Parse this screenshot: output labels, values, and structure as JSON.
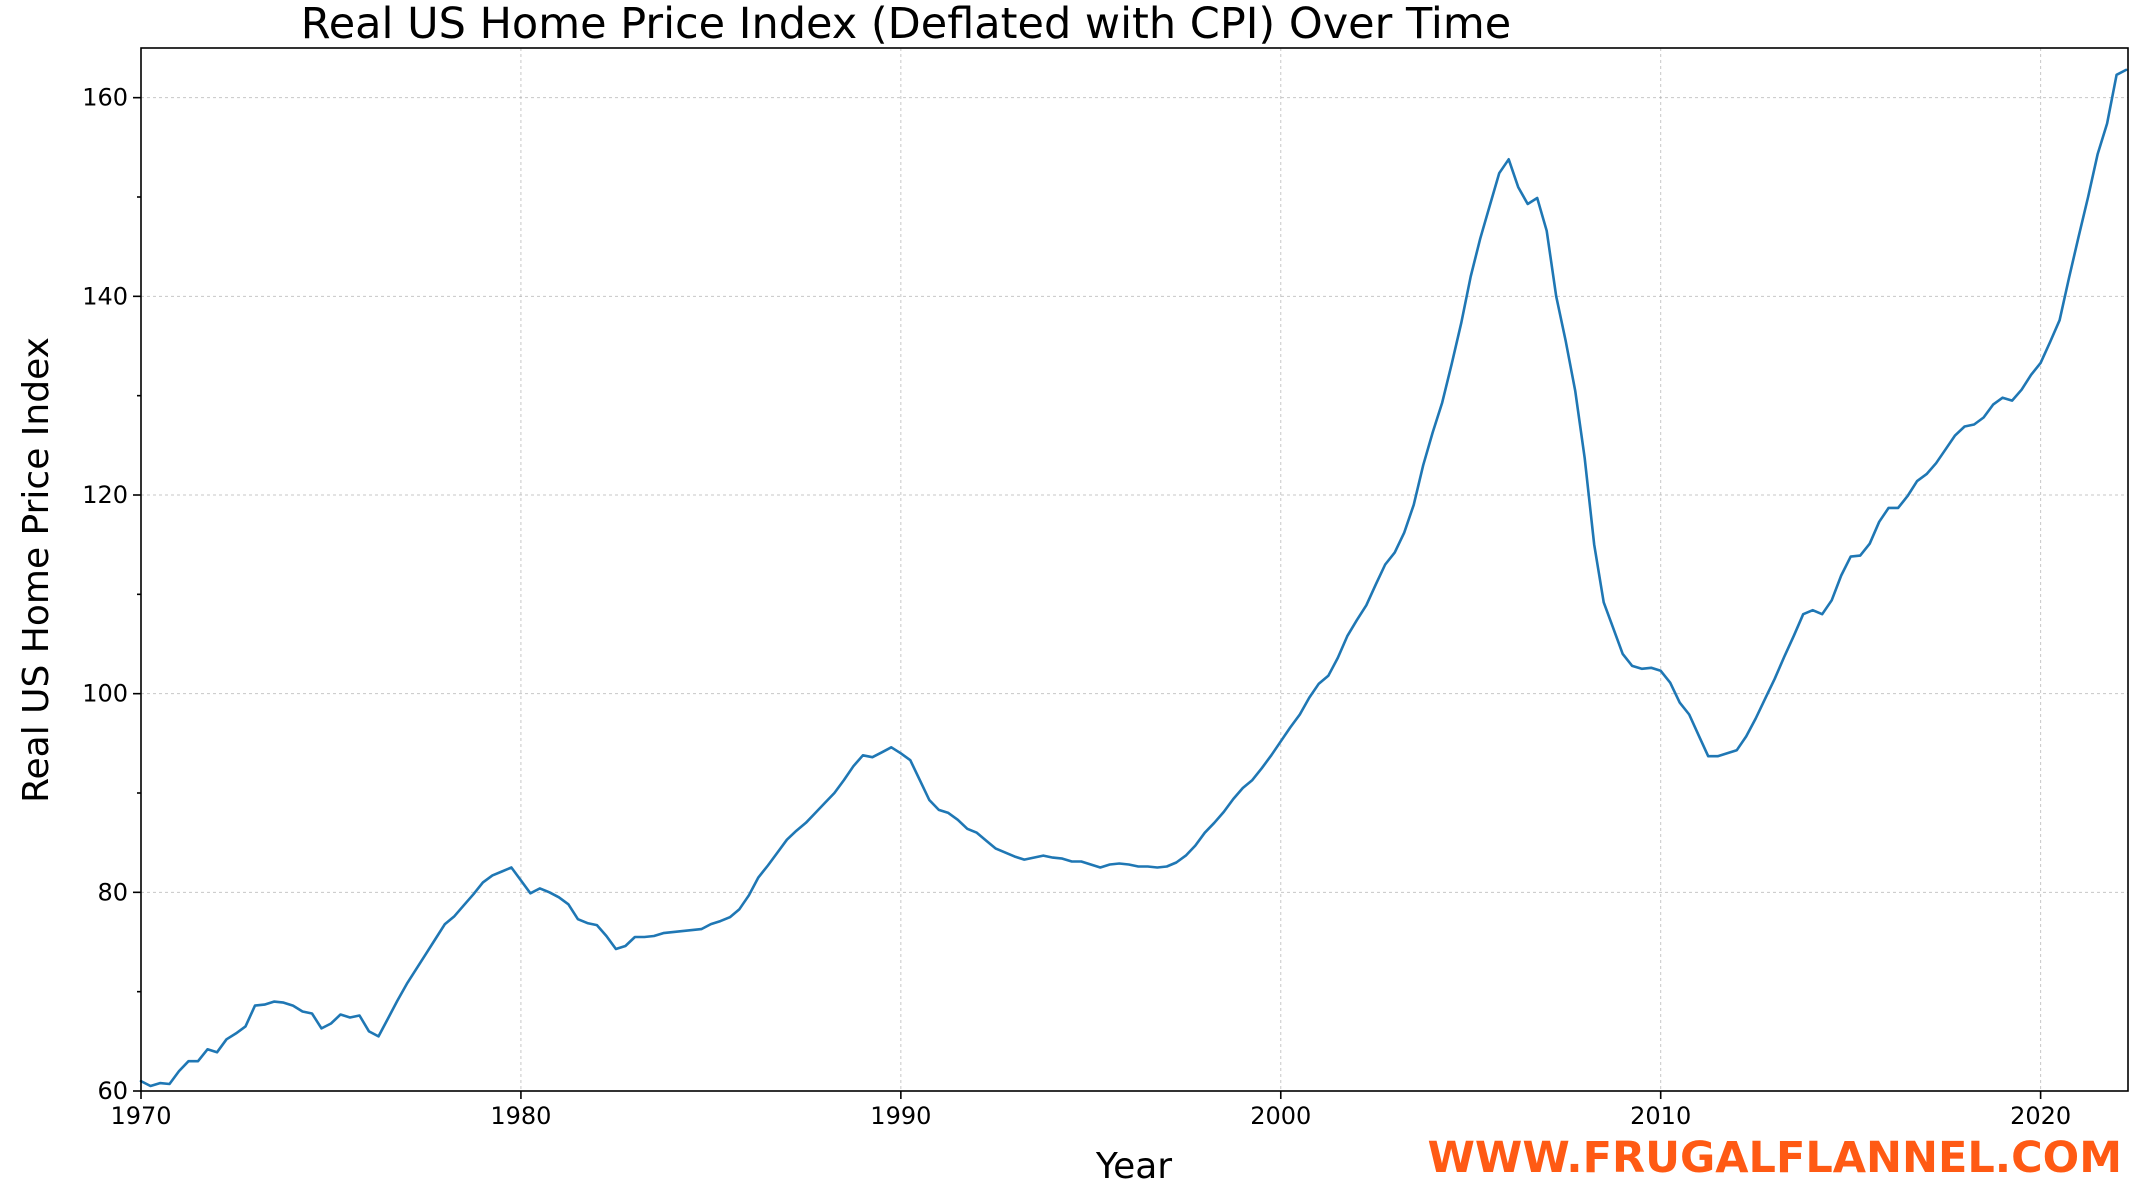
{
  "colors": {
    "line": "#1f77b4",
    "watermark": "#ff5a14"
  },
  "watermark": "WWW.FRUGALFLANNEL.COM",
  "chart_data": {
    "type": "line",
    "title": "Real US Home Price Index (Deflated with CPI) Over Time",
    "xlabel": "Year",
    "ylabel": "Real US Home Price Index",
    "xlim": [
      1970,
      2022.3
    ],
    "ylim": [
      60,
      165
    ],
    "x_ticks": [
      1970,
      1980,
      1990,
      2000,
      2010,
      2020
    ],
    "y_ticks": [
      60,
      80,
      100,
      120,
      140,
      160
    ],
    "y_minor_ticks": [
      70,
      90,
      110,
      130,
      150
    ],
    "grid": true,
    "series": [
      {
        "x": [
          1970,
          1970.25,
          1970.5,
          1970.75,
          1971,
          1971.25,
          1971.5,
          1971.75,
          1972,
          1972.25,
          1972.5,
          1972.75,
          1973,
          1973.25,
          1973.5,
          1973.75,
          1974,
          1974.25,
          1974.5,
          1974.75,
          1975,
          1975.25,
          1975.5,
          1975.75,
          1976,
          1976.25,
          1976.5,
          1976.75,
          1977,
          1977.25,
          1977.5,
          1977.75,
          1978,
          1978.25,
          1978.5,
          1978.75,
          1979,
          1979.25,
          1979.5,
          1979.75,
          1980,
          1980.25,
          1980.5,
          1980.75,
          1981,
          1981.25,
          1981.5,
          1981.75,
          1982,
          1982.25,
          1982.5,
          1982.75,
          1983,
          1983.25,
          1983.5,
          1983.75,
          1984,
          1984.25,
          1984.5,
          1984.75,
          1985,
          1985.25,
          1985.5,
          1985.75,
          1986,
          1986.25,
          1986.5,
          1986.75,
          1987,
          1987.25,
          1987.5,
          1987.75,
          1988,
          1988.25,
          1988.5,
          1988.75,
          1989,
          1989.25,
          1989.5,
          1989.75,
          1990,
          1990.25,
          1990.5,
          1990.75,
          1991,
          1991.25,
          1991.5,
          1991.75,
          1992,
          1992.25,
          1992.5,
          1992.75,
          1993,
          1993.25,
          1993.5,
          1993.75,
          1994,
          1994.25,
          1994.5,
          1994.75,
          1995,
          1995.25,
          1995.5,
          1995.75,
          1996,
          1996.25,
          1996.5,
          1996.75,
          1997,
          1997.25,
          1997.5,
          1997.75,
          1998,
          1998.25,
          1998.5,
          1998.75,
          1999,
          1999.25,
          1999.5,
          1999.75,
          2000,
          2000.25,
          2000.5,
          2000.75,
          2001,
          2001.25,
          2001.5,
          2001.75,
          2002,
          2002.25,
          2002.5,
          2002.75,
          2003,
          2003.25,
          2003.5,
          2003.75,
          2004,
          2004.25,
          2004.5,
          2004.75,
          2005,
          2005.25,
          2005.5,
          2005.75,
          2006,
          2006.25,
          2006.5,
          2006.75,
          2007,
          2007.25,
          2007.5,
          2007.75,
          2008,
          2008.25,
          2008.5,
          2008.75,
          2009,
          2009.25,
          2009.5,
          2009.75,
          2010,
          2010.25,
          2010.5,
          2010.75,
          2011,
          2011.25,
          2011.5,
          2011.75,
          2012,
          2012.25,
          2012.5,
          2012.75,
          2013,
          2013.25,
          2013.5,
          2013.75,
          2014,
          2014.25,
          2014.5,
          2014.75,
          2015,
          2015.25,
          2015.5,
          2015.75,
          2016,
          2016.25,
          2016.5,
          2016.75,
          2017,
          2017.25,
          2017.5,
          2017.75,
          2018,
          2018.25,
          2018.5,
          2018.75,
          2019,
          2019.25,
          2019.5,
          2019.75,
          2020,
          2020.25,
          2020.5,
          2020.75,
          2021,
          2021.25,
          2021.5,
          2021.75,
          2022,
          2022.25
        ],
        "y": [
          61.0,
          60.5,
          60.8,
          60.7,
          62.0,
          63.0,
          63.0,
          64.2,
          63.9,
          65.2,
          65.8,
          66.5,
          68.6,
          68.7,
          69.0,
          68.9,
          68.6,
          68.0,
          67.8,
          66.3,
          66.8,
          67.7,
          67.4,
          67.6,
          66.0,
          65.5,
          67.3,
          69.1,
          70.8,
          72.3,
          73.8,
          75.3,
          76.8,
          77.6,
          78.7,
          79.8,
          81.0,
          81.7,
          82.1,
          82.5,
          81.2,
          79.9,
          80.4,
          80.0,
          79.5,
          78.8,
          77.3,
          76.9,
          76.7,
          75.6,
          74.3,
          74.6,
          75.5,
          75.5,
          75.6,
          75.9,
          76.0,
          76.1,
          76.2,
          76.3,
          76.8,
          77.1,
          77.5,
          78.3,
          79.7,
          81.5,
          82.7,
          84.0,
          85.3,
          86.2,
          87.0,
          88.0,
          89.0,
          90.0,
          91.3,
          92.7,
          93.8,
          93.6,
          94.1,
          94.6,
          94.0,
          93.3,
          91.3,
          89.3,
          88.3,
          88.0,
          87.3,
          86.4,
          86.0,
          85.2,
          84.4,
          84.0,
          83.6,
          83.3,
          83.5,
          83.7,
          83.5,
          83.4,
          83.1,
          83.1,
          82.8,
          82.5,
          82.8,
          82.9,
          82.8,
          82.6,
          82.6,
          82.5,
          82.6,
          83.0,
          83.7,
          84.7,
          86.0,
          87.0,
          88.1,
          89.4,
          90.5,
          91.3,
          92.5,
          93.8,
          95.2,
          96.6,
          97.9,
          99.6,
          101.0,
          101.8,
          103.6,
          105.8,
          107.4,
          108.9,
          111.0,
          113.0,
          114.2,
          116.2,
          119.0,
          123.0,
          126.3,
          129.3,
          133.2,
          137.3,
          142.0,
          145.8,
          149.1,
          152.4,
          153.8,
          151.0,
          149.3,
          149.9,
          146.6,
          140.0,
          135.5,
          130.5,
          123.7,
          115.0,
          109.2,
          106.6,
          104.0,
          102.8,
          102.5,
          102.6,
          102.3,
          101.1,
          99.1,
          97.9,
          95.8,
          93.7,
          93.7,
          94.0,
          94.3,
          95.7,
          97.5,
          99.5,
          101.5,
          103.7,
          105.8,
          108.0,
          108.4,
          108.0,
          109.4,
          111.9,
          113.8,
          113.9,
          115.1,
          117.3,
          118.7,
          118.7,
          119.9,
          121.4,
          122.1,
          123.2,
          124.6,
          126.0,
          126.9,
          127.1,
          127.8,
          129.1,
          129.8,
          129.5,
          130.6,
          132.1,
          133.3,
          135.4,
          137.6,
          141.9,
          146.0,
          150.0,
          154.3,
          157.4,
          162.3,
          162.8
        ]
      }
    ]
  }
}
